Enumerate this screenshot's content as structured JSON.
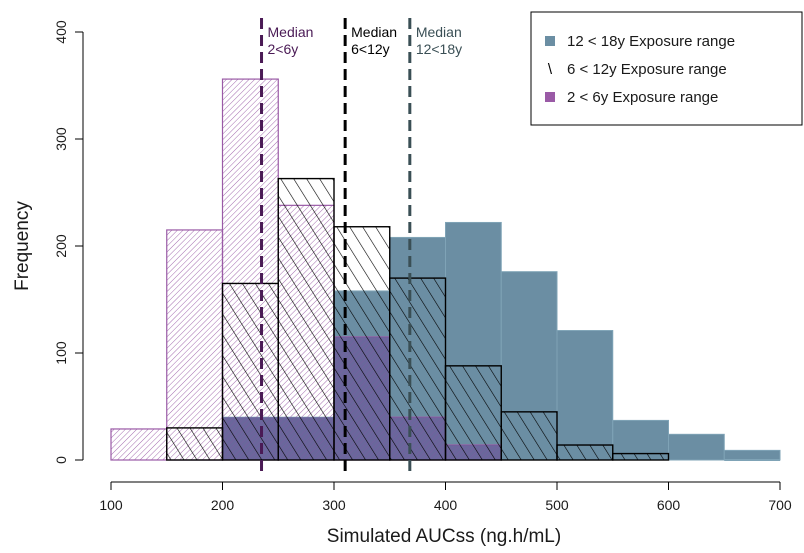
{
  "chart_data": {
    "type": "bar",
    "title": "",
    "xlabel": "Simulated AUCss (ng.h/mL)",
    "ylabel": "Frequency",
    "xlim": [
      100,
      700
    ],
    "ylim": [
      0,
      400
    ],
    "xticks": [
      100,
      200,
      300,
      400,
      500,
      600,
      700
    ],
    "yticks": [
      0,
      100,
      200,
      300,
      400
    ],
    "bin_edges": [
      100,
      150,
      200,
      250,
      300,
      350,
      400,
      450,
      500,
      550,
      600,
      650,
      700
    ],
    "series": [
      {
        "name": "12 < 18y Exposure range",
        "color": "#6b8ea3",
        "pattern": "solid",
        "values": [
          0,
          0,
          40,
          40,
          158,
          208,
          222,
          176,
          121,
          37,
          24,
          9
        ]
      },
      {
        "name": "6 < 12y Exposure range",
        "color": "#000000",
        "pattern": "backslash-hatch",
        "values": [
          0,
          30,
          165,
          263,
          218,
          170,
          88,
          45,
          14,
          6,
          0,
          0
        ]
      },
      {
        "name": "2 < 6y Exposure range",
        "color": "#9a5aa6",
        "pattern": "slash-hatch",
        "values": [
          29,
          215,
          356,
          238,
          115,
          40,
          14,
          0,
          0,
          0,
          0,
          0
        ]
      }
    ],
    "medians": [
      {
        "label_top": "Median",
        "label_bottom": "2<6y",
        "x": 235,
        "color": "#4a1a55"
      },
      {
        "label_top": "Median",
        "label_bottom": "6<12y",
        "x": 310,
        "color": "#000000"
      },
      {
        "label_top": "Median",
        "label_bottom": "12<18y",
        "x": 368,
        "color": "#3a4f55"
      }
    ],
    "legend": {
      "placement": "top-right",
      "entries": [
        {
          "symbol": "■",
          "text": "12 < 18y Exposure range",
          "color": "#6b8ea3"
        },
        {
          "symbol": "\\",
          "text": "6 < 12y Exposure range",
          "color": "#000000"
        },
        {
          "symbol": "■",
          "text": "2 < 6y Exposure range",
          "color": "#9a5aa6"
        }
      ]
    }
  }
}
